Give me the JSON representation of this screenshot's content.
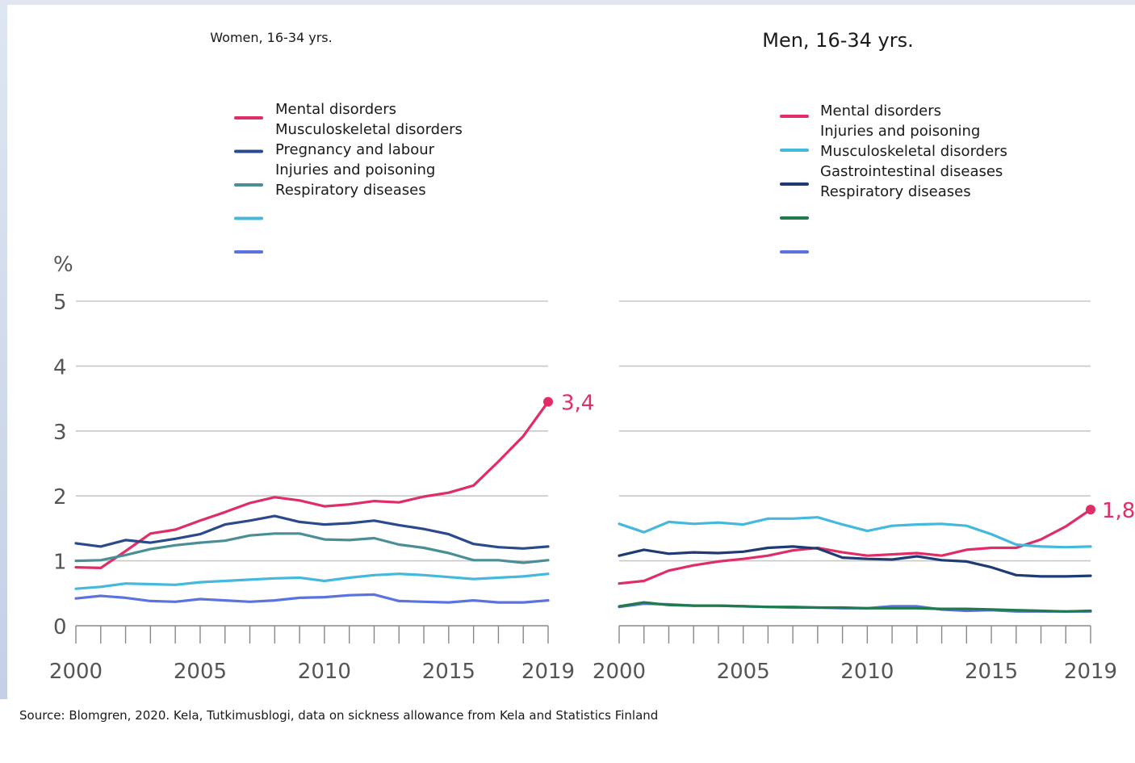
{
  "source_note": "Source: Blomgren, 2020. Kela, Tutkimusblogi, data on sickness allowance from Kela and Statistics Finland",
  "colors": {
    "mental": "#e02d66",
    "musculoskeletal": "#44b8dd",
    "pregnancy": "#2b4a8c",
    "injuries_women": "#4a8f96",
    "respiratory_women": "#5b72e0",
    "injuries_men": "#1e3b73",
    "respiratory_men": "#5b72e0",
    "gastro": "#1f7a4c",
    "grid": "#c8c8c8"
  },
  "chart_data": [
    {
      "type": "line",
      "title": "Women, 16-34 yrs.",
      "ylabel": "%",
      "ylim": [
        0,
        5
      ],
      "yticks": [
        "0",
        "1",
        "2",
        "3",
        "4",
        "5"
      ],
      "xlim": [
        2000,
        2019
      ],
      "xticks": [
        "2000",
        "2005",
        "2010",
        "2015",
        "2019"
      ],
      "x": [
        2000,
        2001,
        2002,
        2003,
        2004,
        2005,
        2006,
        2007,
        2008,
        2009,
        2010,
        2011,
        2012,
        2013,
        2014,
        2015,
        2016,
        2017,
        2018,
        2019
      ],
      "legend": [
        "Mental disorders",
        "Musculoskeletal disorders",
        "Pregnancy and labour",
        "Injuries and poisoning",
        "Respiratory diseases"
      ],
      "legend_colors": [
        "#e02d66",
        "#2b4a8c",
        "#4a8f96",
        "#44b8dd",
        "#5b72e0"
      ],
      "end_label": "3,4",
      "series": [
        {
          "key": "mental",
          "color": "#e02d66",
          "values": [
            0.9,
            0.89,
            1.15,
            1.42,
            1.48,
            1.62,
            1.75,
            1.89,
            1.98,
            1.93,
            1.84,
            1.87,
            1.92,
            1.9,
            1.99,
            2.05,
            2.16,
            2.53,
            2.92,
            3.45
          ]
        },
        {
          "key": "dark_blue",
          "color": "#2b4a8c",
          "values": [
            1.27,
            1.22,
            1.32,
            1.28,
            1.34,
            1.41,
            1.56,
            1.62,
            1.69,
            1.6,
            1.56,
            1.58,
            1.62,
            1.55,
            1.49,
            1.41,
            1.26,
            1.21,
            1.19,
            1.22
          ]
        },
        {
          "key": "teal",
          "color": "#4a8f96",
          "values": [
            1.0,
            1.01,
            1.09,
            1.18,
            1.24,
            1.28,
            1.31,
            1.39,
            1.42,
            1.42,
            1.33,
            1.32,
            1.35,
            1.25,
            1.2,
            1.12,
            1.01,
            1.01,
            0.97,
            1.01
          ]
        },
        {
          "key": "light_blue",
          "color": "#44b8dd",
          "values": [
            0.57,
            0.6,
            0.65,
            0.64,
            0.63,
            0.67,
            0.69,
            0.71,
            0.73,
            0.74,
            0.69,
            0.74,
            0.78,
            0.8,
            0.78,
            0.75,
            0.72,
            0.74,
            0.76,
            0.8
          ]
        },
        {
          "key": "periwinkle",
          "color": "#5b72e0",
          "values": [
            0.42,
            0.46,
            0.43,
            0.38,
            0.37,
            0.41,
            0.39,
            0.37,
            0.39,
            0.43,
            0.44,
            0.47,
            0.48,
            0.38,
            0.37,
            0.36,
            0.39,
            0.36,
            0.36,
            0.39
          ]
        }
      ]
    },
    {
      "type": "line",
      "title": "Men, 16-34 yrs.",
      "ylabel": "",
      "ylim": [
        0,
        5
      ],
      "xlim": [
        2000,
        2019
      ],
      "xticks": [
        "2000",
        "2005",
        "2010",
        "2015",
        "2019"
      ],
      "x": [
        2000,
        2001,
        2002,
        2003,
        2004,
        2005,
        2006,
        2007,
        2008,
        2009,
        2010,
        2011,
        2012,
        2013,
        2014,
        2015,
        2016,
        2017,
        2018,
        2019
      ],
      "legend": [
        "Mental disorders",
        "Injuries and poisoning",
        "Musculoskeletal disorders",
        "Gastrointestinal diseases",
        "Respiratory diseases"
      ],
      "legend_colors": [
        "#e02d66",
        "#44b8dd",
        "#1e3b73",
        "#1f7a4c",
        "#5b72e0"
      ],
      "end_label": "1,8",
      "series": [
        {
          "key": "mental",
          "color": "#e02d66",
          "values": [
            0.65,
            0.69,
            0.85,
            0.93,
            0.99,
            1.03,
            1.08,
            1.16,
            1.2,
            1.13,
            1.08,
            1.1,
            1.12,
            1.08,
            1.17,
            1.2,
            1.2,
            1.33,
            1.53,
            1.79
          ]
        },
        {
          "key": "light_blue",
          "color": "#44b8dd",
          "values": [
            1.57,
            1.44,
            1.6,
            1.57,
            1.59,
            1.56,
            1.65,
            1.65,
            1.67,
            1.56,
            1.46,
            1.54,
            1.56,
            1.57,
            1.54,
            1.41,
            1.25,
            1.22,
            1.21,
            1.22
          ]
        },
        {
          "key": "navy",
          "color": "#1e3b73",
          "values": [
            1.08,
            1.17,
            1.11,
            1.13,
            1.12,
            1.14,
            1.2,
            1.22,
            1.19,
            1.05,
            1.03,
            1.02,
            1.07,
            1.01,
            0.99,
            0.9,
            0.78,
            0.76,
            0.76,
            0.77
          ]
        },
        {
          "key": "periwinkle",
          "color": "#5b72e0",
          "values": [
            0.29,
            0.34,
            0.33,
            0.31,
            0.31,
            0.3,
            0.29,
            0.28,
            0.28,
            0.27,
            0.27,
            0.3,
            0.3,
            0.25,
            0.23,
            0.24,
            0.22,
            0.22,
            0.22,
            0.22
          ]
        },
        {
          "key": "green",
          "color": "#1f7a4c",
          "values": [
            0.3,
            0.36,
            0.32,
            0.31,
            0.31,
            0.3,
            0.29,
            0.29,
            0.28,
            0.28,
            0.27,
            0.27,
            0.27,
            0.26,
            0.26,
            0.25,
            0.24,
            0.23,
            0.22,
            0.23
          ]
        }
      ]
    }
  ]
}
